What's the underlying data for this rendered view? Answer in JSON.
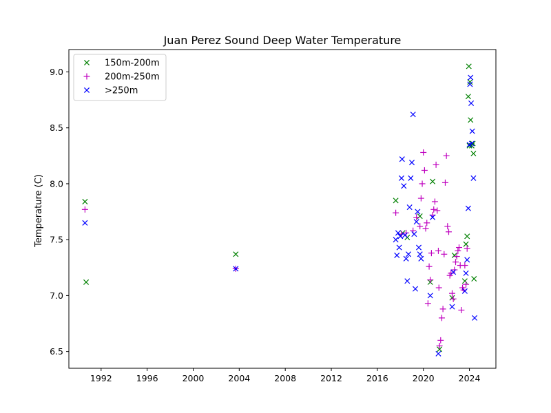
{
  "chart_data": {
    "type": "scatter",
    "title": "Juan Perez Sound Deep Water Temperature",
    "xlabel": "",
    "ylabel": "Temperature (C)",
    "xlim": [
      1989.2,
      2026.3
    ],
    "ylim": [
      6.35,
      9.2
    ],
    "x_ticks": [
      1992,
      1996,
      2000,
      2004,
      2008,
      2012,
      2016,
      2020,
      2024
    ],
    "y_ticks": [
      6.5,
      7.0,
      7.5,
      8.0,
      8.5,
      9.0
    ],
    "y_tick_labels": [
      "6.5",
      "7.0",
      "7.5",
      "8.0",
      "8.5",
      "9.0"
    ],
    "grid": false,
    "legend_position": "top-left",
    "series": [
      {
        "name": "150m-200m",
        "marker": "x",
        "color": "#008000",
        "points": [
          [
            1990.6,
            7.84
          ],
          [
            1990.7,
            7.12
          ],
          [
            2003.7,
            7.37
          ],
          [
            2017.6,
            7.85
          ],
          [
            2018.2,
            7.56
          ],
          [
            2018.6,
            7.52
          ],
          [
            2019.7,
            7.71
          ],
          [
            2020.6,
            7.12
          ],
          [
            2020.8,
            8.02
          ],
          [
            2021.4,
            6.52
          ],
          [
            2022.5,
            6.98
          ],
          [
            2022.7,
            7.36
          ],
          [
            2023.6,
            7.13
          ],
          [
            2023.7,
            7.46
          ],
          [
            2023.8,
            7.53
          ],
          [
            2023.9,
            8.78
          ],
          [
            2023.95,
            9.05
          ],
          [
            2024.0,
            8.34
          ],
          [
            2024.05,
            8.91
          ],
          [
            2024.1,
            8.57
          ],
          [
            2024.2,
            8.34
          ],
          [
            2024.3,
            8.36
          ],
          [
            2024.35,
            8.27
          ],
          [
            2024.4,
            7.15
          ]
        ]
      },
      {
        "name": "200m-250m",
        "marker": "+",
        "color": "#bf00bf",
        "points": [
          [
            1990.6,
            7.77
          ],
          [
            2003.7,
            7.24
          ],
          [
            2017.6,
            7.74
          ],
          [
            2018.1,
            7.55
          ],
          [
            2018.5,
            7.56
          ],
          [
            2019.1,
            7.58
          ],
          [
            2019.4,
            7.7
          ],
          [
            2019.7,
            7.62
          ],
          [
            2019.8,
            7.87
          ],
          [
            2019.9,
            8.0
          ],
          [
            2020.0,
            8.28
          ],
          [
            2020.1,
            8.12
          ],
          [
            2020.2,
            7.6
          ],
          [
            2020.3,
            7.65
          ],
          [
            2020.4,
            6.93
          ],
          [
            2020.5,
            7.26
          ],
          [
            2020.6,
            7.14
          ],
          [
            2020.7,
            7.38
          ],
          [
            2020.8,
            7.72
          ],
          [
            2020.9,
            7.77
          ],
          [
            2021.0,
            7.84
          ],
          [
            2021.1,
            8.17
          ],
          [
            2021.2,
            7.76
          ],
          [
            2021.3,
            7.4
          ],
          [
            2021.35,
            7.07
          ],
          [
            2021.4,
            6.55
          ],
          [
            2021.5,
            6.6
          ],
          [
            2021.6,
            6.8
          ],
          [
            2021.7,
            6.88
          ],
          [
            2021.8,
            7.37
          ],
          [
            2021.9,
            8.01
          ],
          [
            2022.0,
            8.25
          ],
          [
            2022.1,
            7.62
          ],
          [
            2022.2,
            7.57
          ],
          [
            2022.3,
            7.18
          ],
          [
            2022.4,
            7.2
          ],
          [
            2022.5,
            7.02
          ],
          [
            2022.6,
            6.97
          ],
          [
            2022.7,
            7.23
          ],
          [
            2022.8,
            7.3
          ],
          [
            2022.9,
            7.35
          ],
          [
            2023.0,
            7.4
          ],
          [
            2023.1,
            7.43
          ],
          [
            2023.2,
            7.27
          ],
          [
            2023.3,
            6.87
          ],
          [
            2023.4,
            7.07
          ],
          [
            2023.5,
            7.05
          ],
          [
            2023.6,
            7.27
          ],
          [
            2023.7,
            7.1
          ],
          [
            2023.8,
            7.42
          ]
        ]
      },
      {
        "name": ">250m",
        "marker": "x",
        "color": "#0000ff",
        "points": [
          [
            1990.6,
            7.65
          ],
          [
            2003.7,
            7.24
          ],
          [
            2017.6,
            7.5
          ],
          [
            2017.7,
            7.36
          ],
          [
            2017.8,
            7.56
          ],
          [
            2017.9,
            7.43
          ],
          [
            2018.0,
            7.53
          ],
          [
            2018.1,
            8.05
          ],
          [
            2018.15,
            8.22
          ],
          [
            2018.3,
            7.98
          ],
          [
            2018.4,
            7.54
          ],
          [
            2018.5,
            7.33
          ],
          [
            2018.6,
            7.13
          ],
          [
            2018.7,
            7.37
          ],
          [
            2018.8,
            7.79
          ],
          [
            2018.9,
            8.05
          ],
          [
            2019.0,
            8.19
          ],
          [
            2019.1,
            8.62
          ],
          [
            2019.2,
            7.55
          ],
          [
            2019.3,
            7.06
          ],
          [
            2019.4,
            7.66
          ],
          [
            2019.5,
            7.75
          ],
          [
            2019.6,
            7.43
          ],
          [
            2019.7,
            7.37
          ],
          [
            2019.8,
            7.33
          ],
          [
            2020.6,
            7.0
          ],
          [
            2020.8,
            7.7
          ],
          [
            2021.3,
            6.48
          ],
          [
            2022.5,
            6.9
          ],
          [
            2022.6,
            7.21
          ],
          [
            2023.6,
            7.04
          ],
          [
            2023.7,
            7.2
          ],
          [
            2023.8,
            7.32
          ],
          [
            2023.9,
            7.78
          ],
          [
            2024.0,
            8.35
          ],
          [
            2024.05,
            8.89
          ],
          [
            2024.1,
            8.95
          ],
          [
            2024.15,
            8.72
          ],
          [
            2024.2,
            8.36
          ],
          [
            2024.25,
            8.47
          ],
          [
            2024.35,
            8.05
          ],
          [
            2024.45,
            6.8
          ]
        ]
      }
    ]
  }
}
